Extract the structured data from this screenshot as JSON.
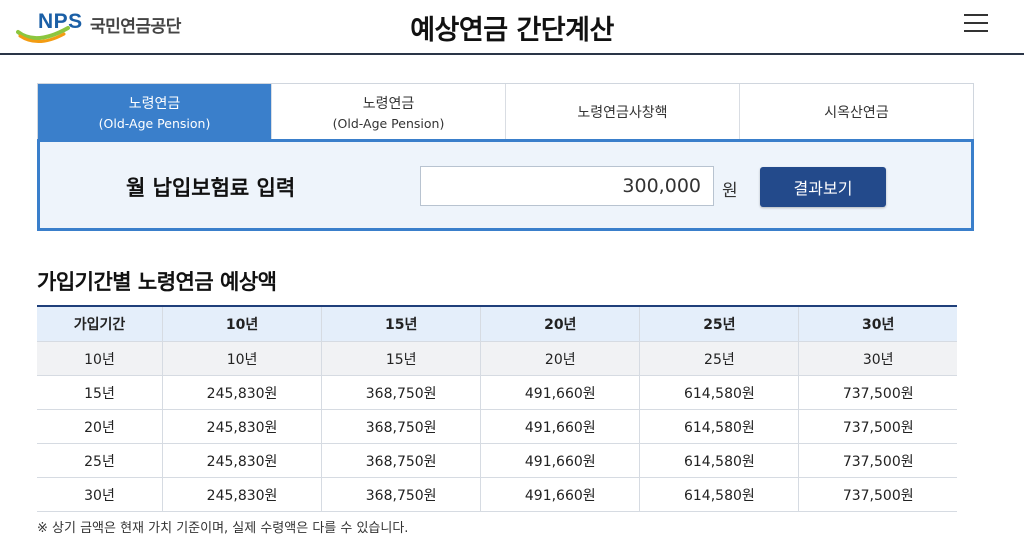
{
  "header": {
    "logo_text": "NPS",
    "org_name": "국민연금공단",
    "title": "예상연금 간단계산"
  },
  "tabs": [
    {
      "label": "노령연금",
      "sublabel": "(Old-Age Pension)"
    },
    {
      "label": "노령연금",
      "sublabel": "(Old-Age Pension)"
    },
    {
      "label": "노령연금사창핵",
      "sublabel": ""
    },
    {
      "label": "시옥산연금",
      "sublabel": ""
    }
  ],
  "input": {
    "label": "월 납입보험료 입력",
    "value": "300,000",
    "unit": "원",
    "button_label": "결과보기"
  },
  "section": {
    "title": "가입기간별 노령연금 예상액"
  },
  "table": {
    "headers": [
      "가입기간",
      "10년",
      "15년",
      "20년",
      "25년",
      "30년"
    ],
    "sub_header": [
      "10년",
      "10년",
      "15년",
      "20년",
      "25년",
      "30년"
    ],
    "rows": [
      [
        "15년",
        "245,830원",
        "368,750원",
        "491,660원",
        "614,580원",
        "737,500원"
      ],
      [
        "20년",
        "245,830원",
        "368,750원",
        "491,660원",
        "614,580원",
        "737,500원"
      ],
      [
        "25년",
        "245,830원",
        "368,750원",
        "491,660원",
        "614,580원",
        "737,500원"
      ],
      [
        "30년",
        "245,830원",
        "368,750원",
        "491,660원",
        "614,580원",
        "737,500원"
      ]
    ]
  },
  "footnote": "※ 상기 금액은 현재 가치 기준이며, 실제 수령액은 다를 수 있습니다.",
  "colors": {
    "accent": "#3a7fcb",
    "button": "#234a8b",
    "table_header_bg": "#e4eefa",
    "logo_blue": "#1b5fa6",
    "logo_green": "#8cc63f",
    "logo_orange": "#f39c12"
  }
}
